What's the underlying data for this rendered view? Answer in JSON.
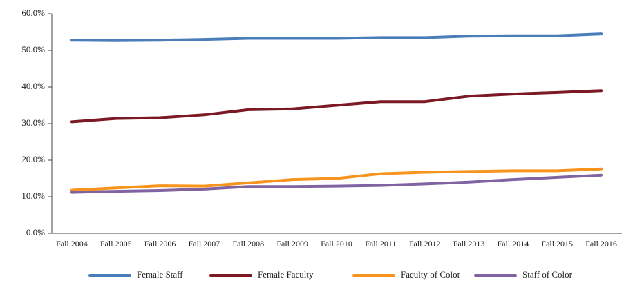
{
  "chart_data": {
    "type": "line",
    "categories": [
      "Fall 2004",
      "Fall 2005",
      "Fall 2006",
      "Fall 2007",
      "Fall 2008",
      "Fall 2009",
      "Fall 2010",
      "Fall 2011",
      "Fall 2012",
      "Fall 2013",
      "Fall 2014",
      "Fall 2015",
      "Fall 2016"
    ],
    "series": [
      {
        "name": "Female Staff",
        "color": "#4a7ebb",
        "values": [
          52.8,
          52.7,
          52.8,
          53.0,
          53.3,
          53.3,
          53.3,
          53.5,
          53.5,
          53.9,
          54.0,
          54.0,
          54.5
        ]
      },
      {
        "name": "Female Faculty",
        "color": "#7b1a24",
        "values": [
          30.5,
          31.4,
          31.6,
          32.4,
          33.8,
          34.0,
          35.0,
          36.0,
          36.0,
          37.5,
          38.1,
          38.5,
          39.0
        ]
      },
      {
        "name": "Faculty of Color",
        "color": "#f7941d",
        "values": [
          11.8,
          12.4,
          13.0,
          12.9,
          13.8,
          14.7,
          15.0,
          16.3,
          16.7,
          16.9,
          17.1,
          17.1,
          17.6
        ]
      },
      {
        "name": "Staff of Color",
        "color": "#8064a2",
        "values": [
          11.2,
          11.5,
          11.7,
          12.1,
          12.8,
          12.8,
          12.9,
          13.1,
          13.5,
          14.0,
          14.7,
          15.3,
          15.9
        ]
      }
    ],
    "ylim": [
      0,
      60
    ],
    "yticks": [
      {
        "value": 0,
        "label": "0.0%"
      },
      {
        "value": 10,
        "label": "10.0%"
      },
      {
        "value": 20,
        "label": "20.0%"
      },
      {
        "value": 30,
        "label": "30.0%"
      },
      {
        "value": 40,
        "label": "40.0%"
      },
      {
        "value": 50,
        "label": "50.0%"
      },
      {
        "value": 60,
        "label": "60.0%"
      }
    ],
    "legend": "bottom"
  }
}
